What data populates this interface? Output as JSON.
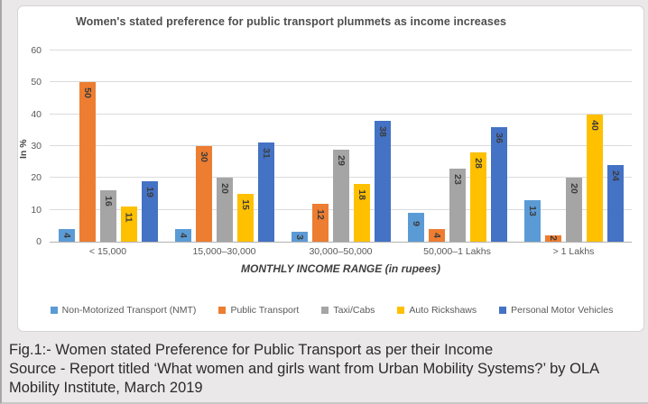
{
  "page": {
    "background": "#eae8e8"
  },
  "figure_caption": {
    "lines": [
      "Fig.1:- Women stated Preference for Public Transport as per their Income",
      "Source - Report titled ‘What women and girls want from Urban Mobility Systems?’ by OLA",
      "Mobility Institute, March 2019"
    ]
  },
  "chart_data": {
    "type": "bar",
    "title": "Women's stated preference for public transport plummets as income increases",
    "xlabel": "MONTHLY INCOME RANGE (in rupees)",
    "ylabel": "In %",
    "ylim": [
      0,
      60
    ],
    "ytick_step": 10,
    "grid": true,
    "legend_position": "bottom",
    "data_labels": "rotated-vertical",
    "categories": [
      "< 15,000",
      "15,000–30,000",
      "30,000–50,000",
      "50,000–1 Lakhs",
      "> 1 Lakhs"
    ],
    "series": [
      {
        "name": "Non-Motorized Transport (NMT)",
        "color": "#5B9BD5",
        "values": [
          4,
          4,
          3,
          9,
          13
        ]
      },
      {
        "name": "Public Transport",
        "color": "#ED7D31",
        "values": [
          50,
          30,
          12,
          4,
          2
        ]
      },
      {
        "name": "Taxi/Cabs",
        "color": "#A5A5A5",
        "values": [
          16,
          20,
          29,
          23,
          20
        ]
      },
      {
        "name": "Auto Rickshaws",
        "color": "#FFC000",
        "values": [
          11,
          15,
          18,
          28,
          40
        ]
      },
      {
        "name": "Personal Motor Vehicles",
        "color": "#4472C4",
        "values": [
          19,
          31,
          38,
          36,
          24
        ]
      }
    ]
  }
}
